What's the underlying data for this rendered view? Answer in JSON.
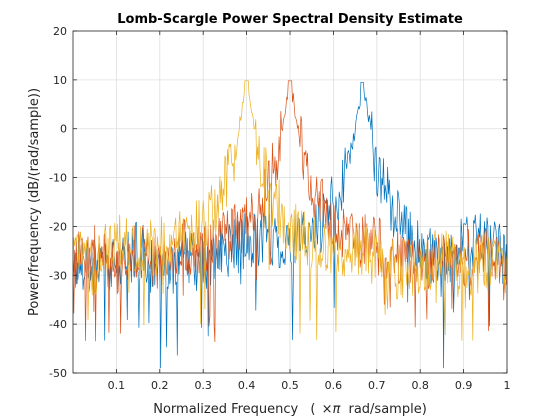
{
  "chart_data": {
    "type": "line",
    "title": "Lomb-Scargle Power Spectral Density Estimate",
    "xlabel_prefix": "Normalized Frequency",
    "xlabel_math": "×π",
    "xlabel_suffix": "rad/sample)",
    "xlabel_open": "(",
    "ylabel": "Power/frequency (dB/(rad/sample))",
    "xlim": [
      0,
      1
    ],
    "ylim": [
      -50,
      20
    ],
    "xticks": [
      0.1,
      0.2,
      0.3,
      0.4,
      0.5,
      0.6,
      0.7,
      0.8,
      0.9,
      1
    ],
    "xtick_labels": [
      "0.1",
      "0.2",
      "0.3",
      "0.4",
      "0.5",
      "0.6",
      "0.7",
      "0.8",
      "0.9",
      "1"
    ],
    "yticks": [
      20,
      10,
      0,
      -10,
      -20,
      -30,
      -40,
      -50
    ],
    "ytick_labels": [
      "20",
      "10",
      "0",
      "-10",
      "-20",
      "-30",
      "-40",
      "-50"
    ],
    "grid": true,
    "series": [
      {
        "color": "#0072BD",
        "peak_x": 0.667,
        "peak_y": 9.5,
        "noise_floor": -27,
        "x": [
          0,
          0.05,
          0.1,
          0.15,
          0.2,
          0.25,
          0.3,
          0.35,
          0.4,
          0.45,
          0.5,
          0.55,
          0.6,
          0.62,
          0.64,
          0.655,
          0.667,
          0.68,
          0.7,
          0.72,
          0.75,
          0.8,
          0.85,
          0.9,
          0.95,
          1
        ],
        "y": [
          -28,
          -26,
          -29,
          -24,
          -31,
          -26,
          -28,
          -25,
          -23,
          -22,
          -24,
          -21,
          -15,
          -12,
          -5,
          2,
          9.5,
          3,
          -8,
          -12,
          -19,
          -25,
          -27,
          -24,
          -22,
          -27
        ]
      },
      {
        "color": "#D95319",
        "peak_x": 0.5,
        "peak_y": 9.8,
        "noise_floor": -27,
        "x": [
          0,
          0.05,
          0.1,
          0.15,
          0.2,
          0.25,
          0.3,
          0.35,
          0.4,
          0.44,
          0.47,
          0.485,
          0.5,
          0.515,
          0.53,
          0.56,
          0.6,
          0.65,
          0.7,
          0.75,
          0.8,
          0.85,
          0.9,
          0.95,
          1
        ],
        "y": [
          -27,
          -24,
          -28,
          -25,
          -27,
          -23,
          -26,
          -22,
          -20,
          -14,
          -6,
          2,
          9.8,
          2,
          -6,
          -14,
          -20,
          -23,
          -24,
          -26,
          -28,
          -26,
          -27,
          -25,
          -29
        ]
      },
      {
        "color": "#EDB120",
        "peak_x": 0.4,
        "peak_y": 9.8,
        "noise_floor": -27,
        "x": [
          0,
          0.05,
          0.1,
          0.15,
          0.2,
          0.25,
          0.3,
          0.34,
          0.37,
          0.385,
          0.4,
          0.415,
          0.43,
          0.46,
          0.5,
          0.55,
          0.6,
          0.65,
          0.7,
          0.75,
          0.8,
          0.85,
          0.9,
          0.95,
          1
        ],
        "y": [
          -26,
          -29,
          -22,
          -25,
          -24,
          -22,
          -20,
          -14,
          -6,
          2,
          9.8,
          2,
          -6,
          -14,
          -20,
          -23,
          -26,
          -24,
          -27,
          -29,
          -28,
          -26,
          -30,
          -27,
          -28
        ]
      }
    ]
  }
}
